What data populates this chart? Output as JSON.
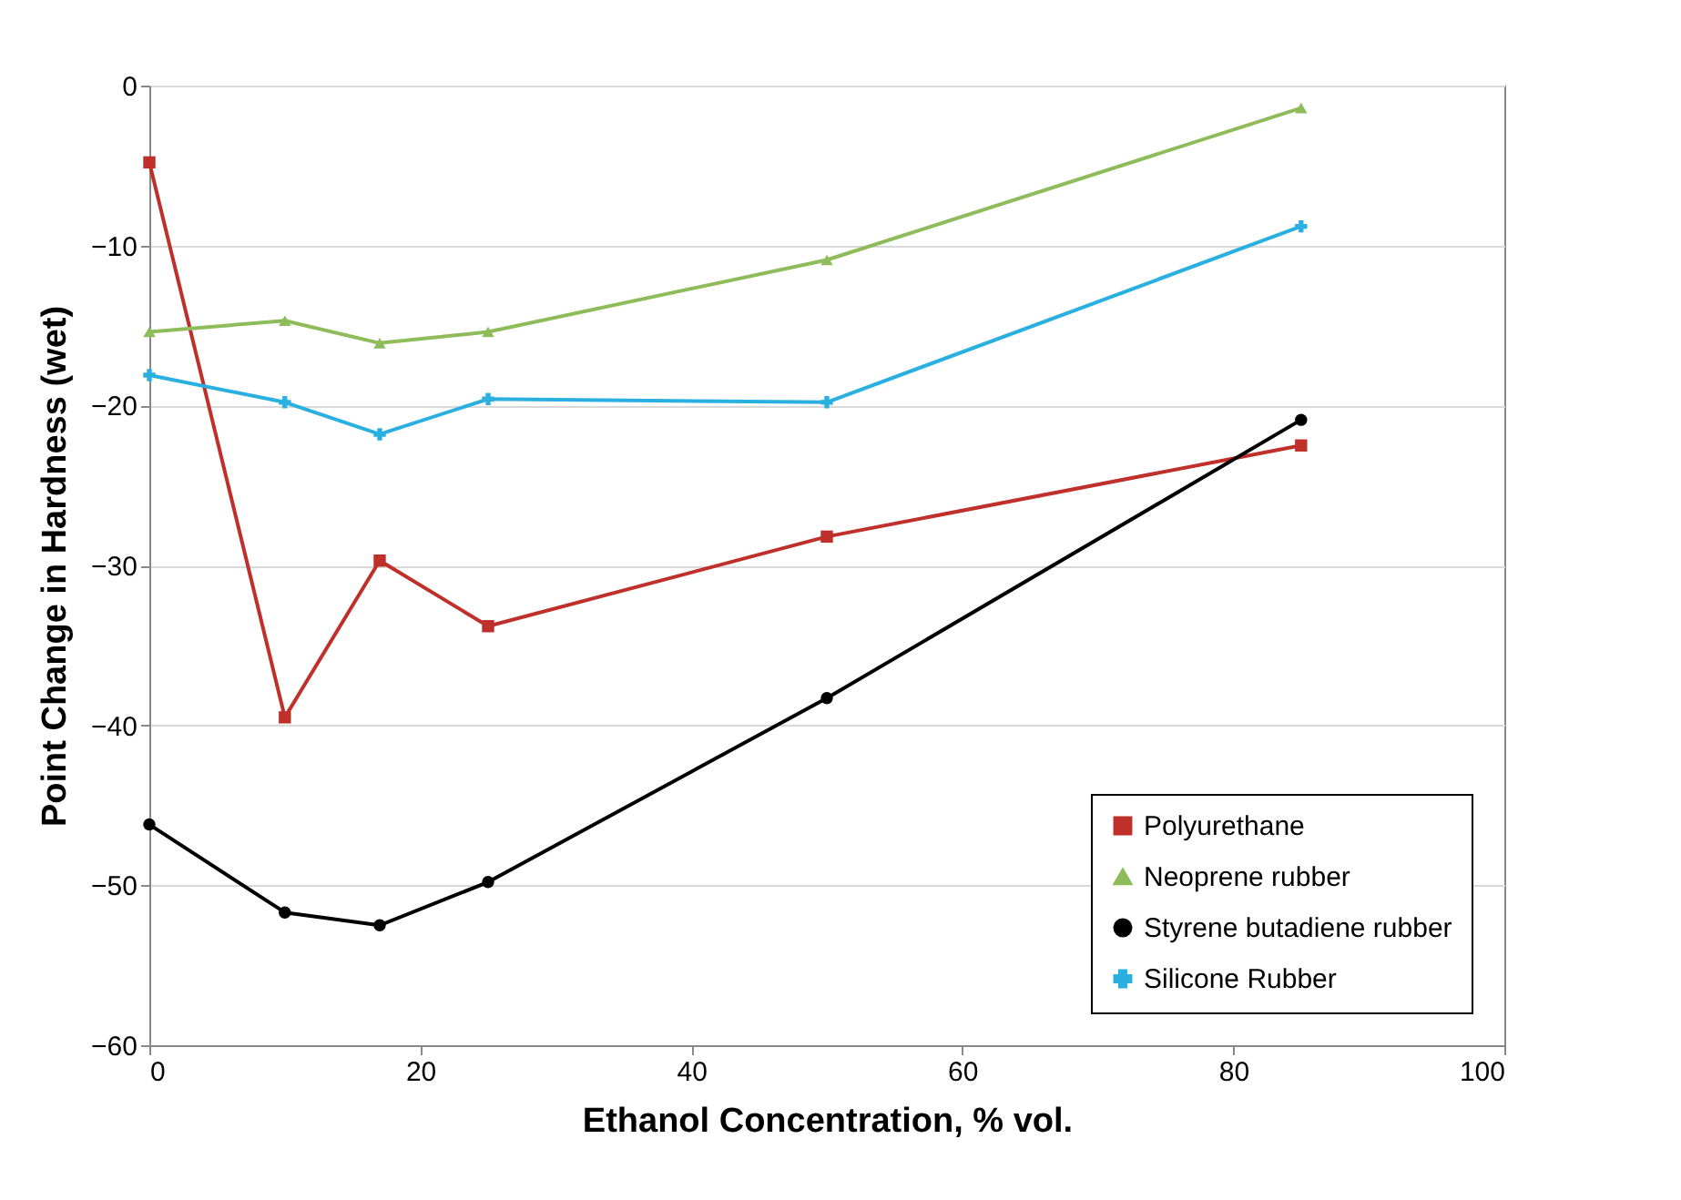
{
  "chart_data": {
    "type": "line",
    "xlabel": "Ethanol Concentration, % vol.",
    "ylabel": "Point Change in Hardness (wet)",
    "x": [
      0,
      10,
      17,
      25,
      50,
      85
    ],
    "series": [
      {
        "name": "Polyurethane",
        "color": "#c0302a",
        "marker": "square",
        "values": [
          -4.8,
          -39.5,
          -29.7,
          -33.8,
          -28.2,
          -22.5
        ]
      },
      {
        "name": "Neoprene rubber",
        "color": "#8fbc5a",
        "marker": "triangle",
        "values": [
          -15.4,
          -14.7,
          -16.1,
          -15.4,
          -10.9,
          -1.4
        ]
      },
      {
        "name": "Styrene butadiene rubber",
        "color": "#000000",
        "marker": "circle",
        "values": [
          -46.2,
          -51.7,
          -52.5,
          -49.8,
          -38.3,
          -20.9
        ]
      },
      {
        "name": "Silicone Rubber",
        "color": "#2ab0e0",
        "marker": "cross",
        "values": [
          -18.1,
          -19.8,
          -21.8,
          -19.6,
          -19.8,
          -8.8
        ]
      }
    ],
    "xlim": [
      0,
      100
    ],
    "xticks": [
      0,
      20,
      40,
      60,
      80,
      100
    ],
    "ylim": [
      -60,
      0
    ],
    "yticks": [
      -60,
      -50,
      -40,
      -30,
      -20,
      -10,
      0
    ],
    "grid": "y",
    "legend": "bottom right",
    "line_style": "solid"
  }
}
